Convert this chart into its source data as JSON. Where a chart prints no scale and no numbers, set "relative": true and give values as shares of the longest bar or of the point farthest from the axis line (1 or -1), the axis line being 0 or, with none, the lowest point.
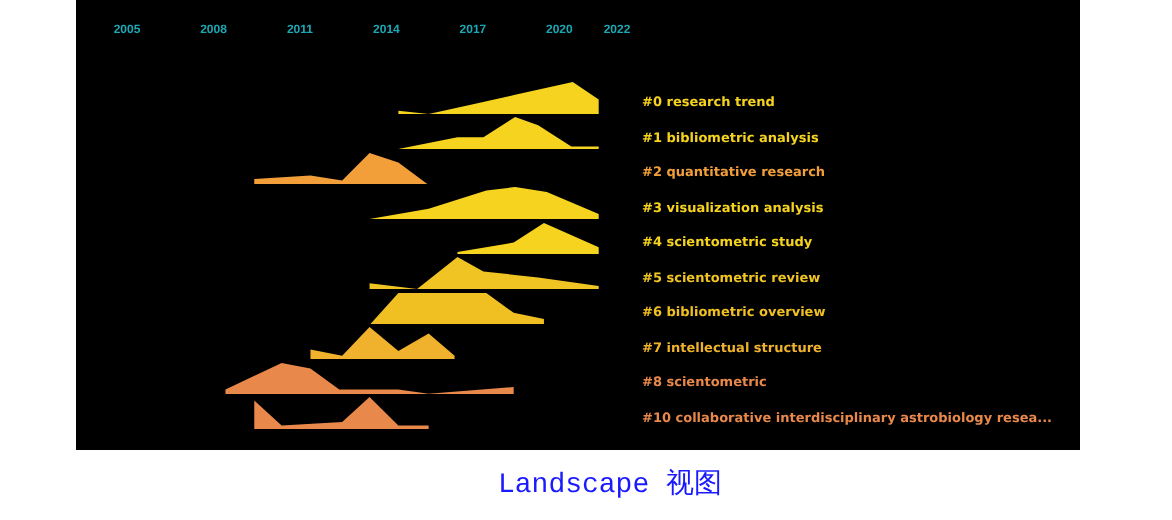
{
  "chart_data": [
    {
      "type": "area",
      "relative": true,
      "xlim": [
        2005,
        2022
      ],
      "xticks": [
        2005,
        2008,
        2011,
        2014,
        2017,
        2020,
        2022
      ],
      "tick_labels": "x",
      "x": [
        2014.45,
        2015.5,
        2017,
        2018.5,
        2020.5,
        2021.4
      ],
      "series": [
        {
          "name": "#0 research trend",
          "color": "#f5d31e",
          "values": [
            0.1,
            0,
            0.3,
            0.6,
            1,
            0.45
          ]
        }
      ]
    },
    {
      "type": "area",
      "relative": true,
      "xlim": [
        2005,
        2022
      ],
      "tick_labels": false,
      "x": [
        2014.45,
        2016.5,
        2017.4,
        2018.5,
        2019.3,
        2020.45,
        2021.4
      ],
      "series": [
        {
          "name": "#1 bibliometric analysis",
          "color": "#f5d31e",
          "values": [
            0,
            0.37,
            0.37,
            1,
            0.74,
            0.08,
            0.08
          ]
        }
      ]
    },
    {
      "type": "area",
      "relative": true,
      "xlim": [
        2005,
        2022
      ],
      "tick_labels": false,
      "x": [
        2009.45,
        2011.4,
        2012.5,
        2013.45,
        2014.45,
        2015.5
      ],
      "series": [
        {
          "name": "#2 quantitative research",
          "color": "#f29f3a",
          "values": [
            0.19,
            0.3,
            0.14,
            1,
            0.7,
            0
          ]
        }
      ]
    },
    {
      "type": "area",
      "relative": true,
      "xlim": [
        2005,
        2022
      ],
      "tick_labels": false,
      "x": [
        2013.45,
        2015.5,
        2017.5,
        2018.5,
        2019.6,
        2021.4
      ],
      "series": [
        {
          "name": "#3 visualization analysis",
          "color": "#f5d31e",
          "values": [
            0,
            0.32,
            0.89,
            1,
            0.84,
            0.16
          ]
        }
      ]
    },
    {
      "type": "area",
      "relative": true,
      "xlim": [
        2005,
        2022
      ],
      "tick_labels": false,
      "x": [
        2016.5,
        2018.45,
        2019.5,
        2021.4
      ],
      "series": [
        {
          "name": "#4 scientometric study",
          "color": "#f5d31e",
          "values": [
            0.09,
            0.39,
            1,
            0.24
          ]
        }
      ]
    },
    {
      "type": "area",
      "relative": true,
      "xlim": [
        2005,
        2022
      ],
      "tick_labels": false,
      "x": [
        2013.45,
        2015.1,
        2016.5,
        2017.4,
        2019.3,
        2021.4
      ],
      "series": [
        {
          "name": "#5 scientometric review",
          "color": "#f0c423",
          "values": [
            0.18,
            0,
            1,
            0.55,
            0.36,
            0.09
          ]
        }
      ]
    },
    {
      "type": "area",
      "relative": true,
      "xlim": [
        2005,
        2022
      ],
      "tick_labels": false,
      "x": [
        2013.45,
        2014.45,
        2017.5,
        2018.45,
        2019.5
      ],
      "series": [
        {
          "name": "#6 bibliometric overview",
          "color": "#f0c023",
          "values": [
            0,
            1,
            1,
            0.38,
            0.19
          ]
        }
      ]
    },
    {
      "type": "area",
      "relative": true,
      "xlim": [
        2005,
        2022
      ],
      "tick_labels": false,
      "x": [
        2011.4,
        2012.5,
        2013.45,
        2014.45,
        2015.5,
        2016.4
      ],
      "series": [
        {
          "name": "#7 intellectual structure",
          "color": "#f0b22c",
          "values": [
            0.3,
            0.1,
            1,
            0.25,
            0.8,
            0.1
          ]
        }
      ]
    },
    {
      "type": "area",
      "relative": true,
      "xlim": [
        2005,
        2022
      ],
      "tick_labels": false,
      "x": [
        2008.45,
        2010.4,
        2011.4,
        2012.4,
        2014.45,
        2015.5,
        2018.45
      ],
      "series": [
        {
          "name": "#8 scientometric",
          "color": "#e8884a",
          "values": [
            0.17,
            1,
            0.83,
            0.17,
            0.17,
            0.04,
            0.25
          ]
        }
      ]
    },
    {
      "type": "area",
      "relative": true,
      "xlim": [
        2005,
        2022
      ],
      "tick_labels": false,
      "x": [
        2009.45,
        2010.4,
        2012.5,
        2013.45,
        2014.45,
        2015.5
      ],
      "series": [
        {
          "name": "#10 collaborative interdisciplinary astrobiology resea...",
          "color": "#e8884a",
          "values": [
            0.89,
            0.11,
            0.22,
            1,
            0.11,
            0.11
          ]
        }
      ],
      "annotations": [
        "Landscape 视图"
      ]
    }
  ]
}
